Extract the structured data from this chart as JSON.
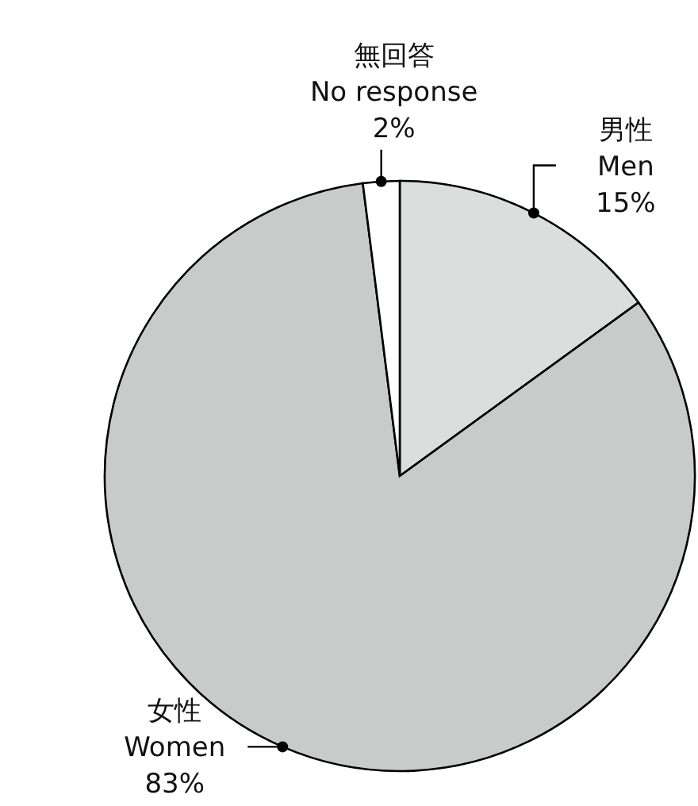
{
  "chart_data": {
    "type": "pie",
    "categories": [
      "男性\nMen",
      "女性\nWomen",
      "無回答\nNo response"
    ],
    "values": [
      15,
      83,
      2
    ],
    "colors": [
      "#dcdddd",
      "#c9caca",
      "#ffffff"
    ],
    "value_labels": [
      "15%",
      "83%",
      "2%"
    ]
  }
}
